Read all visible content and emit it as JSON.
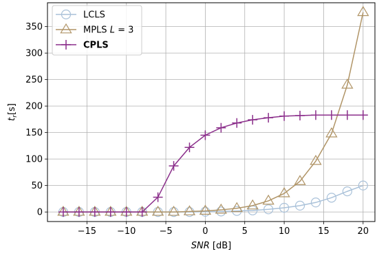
{
  "chart_data": {
    "type": "line",
    "title": "",
    "xlabel_italic": "SNR",
    "xlabel_unit": " [dB]",
    "ylabel_main": "t",
    "ylabel_sub": "r",
    "ylabel_unit": "[s]",
    "xlim": [
      -20,
      21.5
    ],
    "ylim": [
      -18,
      395
    ],
    "xticks": [
      -15,
      -10,
      -5,
      0,
      5,
      10,
      15,
      20
    ],
    "xtick_labels": [
      "−15",
      "−10",
      "−5",
      "0",
      "5",
      "10",
      "15",
      "20"
    ],
    "yticks": [
      0,
      50,
      100,
      150,
      200,
      250,
      300,
      350
    ],
    "ytick_labels": [
      "0",
      "50",
      "100",
      "150",
      "200",
      "250",
      "300",
      "350"
    ],
    "grid": true,
    "legend_position": "top-left",
    "series": [
      {
        "name": "LCLS",
        "marker": "circle",
        "color": "#a9c1d9",
        "x": [
          -18,
          -16,
          -14,
          -12,
          -10,
          -8,
          -6,
          -4,
          -2,
          0,
          2,
          4,
          6,
          8,
          10,
          12,
          14,
          16,
          18,
          20
        ],
        "y": [
          0,
          0,
          0,
          0,
          0,
          0,
          0,
          0,
          0,
          0.5,
          1,
          2,
          3,
          5,
          8,
          12,
          18,
          27,
          39,
          50
        ]
      },
      {
        "name_prefix": "MPLS ",
        "name_italic": "L",
        "name_suffix": " = 3",
        "marker": "triangle",
        "color": "#b09466",
        "x": [
          -18,
          -16,
          -14,
          -12,
          -10,
          -8,
          -6,
          -4,
          -2,
          0,
          2,
          4,
          6,
          8,
          10,
          12,
          14,
          16,
          18,
          20
        ],
        "y": [
          0,
          0,
          0,
          0,
          0,
          0,
          0,
          0,
          1,
          2,
          4,
          7,
          12,
          21,
          35,
          58,
          96,
          148,
          240,
          377
        ]
      },
      {
        "name": "CPLS",
        "marker": "plus",
        "color": "#8b2f8b",
        "x": [
          -18,
          -16,
          -14,
          -12,
          -10,
          -8,
          -6,
          -4,
          -2,
          0,
          2,
          4,
          6,
          8,
          10,
          12,
          14,
          16,
          18,
          20
        ],
        "y": [
          0,
          0,
          0,
          0,
          0,
          0,
          28,
          87,
          122,
          145,
          159,
          168,
          174,
          178,
          181,
          182,
          183,
          183,
          183,
          183
        ]
      }
    ]
  }
}
